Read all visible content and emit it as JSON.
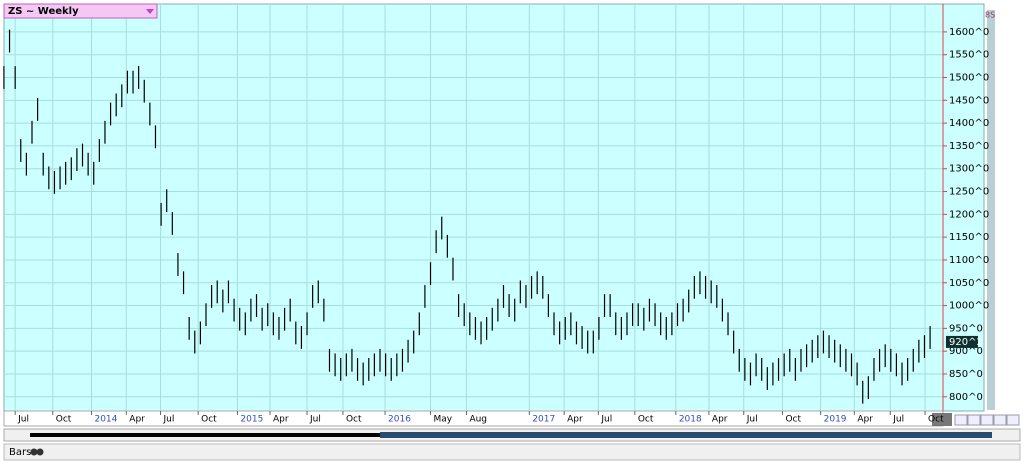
{
  "chart_data": {
    "type": "ohlc",
    "title": "ZS ~ Weekly",
    "color": "#000000",
    "grid": true,
    "high": [
      1525,
      1605,
      1525,
      1365,
      1335,
      1405,
      1455,
      1335,
      1305,
      1295,
      1305,
      1315,
      1325,
      1345,
      1355,
      1335,
      1315,
      1365,
      1405,
      1445,
      1465,
      1485,
      1515,
      1515,
      1525,
      1495,
      1445,
      1395,
      1225,
      1255,
      1205,
      1115,
      1075,
      975,
      945,
      965,
      1005,
      1045,
      1055,
      1035,
      1055,
      1015,
      995,
      985,
      1015,
      1025,
      995,
      1005,
      985,
      975,
      995,
      1015,
      965,
      955,
      985,
      1045,
      1055,
      1015,
      905,
      895,
      885,
      895,
      905,
      885,
      875,
      885,
      895,
      905,
      895,
      885,
      895,
      905,
      925,
      945,
      985,
      1045,
      1095,
      1165,
      1195,
      1155,
      1105,
      1025,
      1005,
      985,
      975,
      965,
      975,
      995,
      1015,
      1045,
      1025,
      1015,
      1055,
      1045,
      1065,
      1075,
      1065,
      1025,
      985,
      965,
      975,
      985,
      965,
      955,
      945,
      945,
      975,
      1025,
      1025,
      985,
      975,
      985,
      1005,
      1005,
      995,
      1015,
      1005,
      985,
      975,
      985,
      1005,
      1015,
      1035,
      1065,
      1075,
      1065,
      1055,
      1045,
      1015,
      985,
      945,
      905,
      885,
      875,
      895,
      885,
      865,
      875,
      885,
      895,
      905,
      885,
      905,
      915,
      925,
      935,
      945,
      935,
      925,
      915,
      905,
      895,
      875,
      835,
      845,
      885,
      905,
      915,
      905,
      895,
      875,
      885,
      905,
      925,
      935,
      955
    ],
    "low": [
      1475,
      1555,
      1475,
      1315,
      1285,
      1355,
      1405,
      1285,
      1255,
      1245,
      1255,
      1265,
      1275,
      1295,
      1305,
      1285,
      1265,
      1315,
      1355,
      1395,
      1415,
      1435,
      1465,
      1465,
      1475,
      1445,
      1395,
      1345,
      1175,
      1205,
      1155,
      1065,
      1025,
      925,
      895,
      915,
      955,
      995,
      1005,
      985,
      1005,
      965,
      945,
      935,
      965,
      975,
      945,
      955,
      935,
      925,
      945,
      965,
      915,
      905,
      935,
      995,
      1005,
      965,
      855,
      845,
      835,
      845,
      855,
      835,
      825,
      835,
      845,
      855,
      845,
      835,
      845,
      855,
      875,
      895,
      935,
      995,
      1045,
      1115,
      1145,
      1105,
      1055,
      975,
      955,
      935,
      925,
      915,
      925,
      945,
      965,
      995,
      975,
      965,
      1005,
      995,
      1015,
      1025,
      1015,
      975,
      935,
      915,
      925,
      935,
      915,
      905,
      895,
      895,
      925,
      975,
      975,
      935,
      925,
      935,
      955,
      955,
      945,
      965,
      955,
      935,
      925,
      935,
      955,
      965,
      985,
      1015,
      1025,
      1015,
      1005,
      995,
      965,
      935,
      895,
      855,
      835,
      825,
      845,
      835,
      815,
      825,
      835,
      845,
      855,
      835,
      855,
      865,
      875,
      885,
      895,
      885,
      875,
      865,
      855,
      845,
      825,
      785,
      795,
      835,
      855,
      865,
      855,
      845,
      825,
      835,
      855,
      875,
      885,
      905
    ],
    "xlim": [
      -0.7,
      167.3
    ],
    "xticks": [
      {
        "value": 2.0,
        "label": "Jul"
      },
      {
        "value": 8.7,
        "label": "Oct"
      },
      {
        "value": 15.6,
        "label": "2014"
      },
      {
        "value": 21.8,
        "label": "Apr"
      },
      {
        "value": 27.9,
        "label": "Jul"
      },
      {
        "value": 34.6,
        "label": "Oct"
      },
      {
        "value": 41.6,
        "label": "2015"
      },
      {
        "value": 47.4,
        "label": "Apr"
      },
      {
        "value": 54.0,
        "label": "Jul"
      },
      {
        "value": 60.4,
        "label": "Oct"
      },
      {
        "value": 67.9,
        "label": "2016"
      },
      {
        "value": 76.0,
        "label": "May"
      },
      {
        "value": 82.4,
        "label": "Aug"
      },
      {
        "value": 93.6,
        "label": "2017"
      },
      {
        "value": 99.8,
        "label": "Apr"
      },
      {
        "value": 105.9,
        "label": "Jul"
      },
      {
        "value": 112.4,
        "label": "Oct"
      },
      {
        "value": 119.7,
        "label": "2018"
      },
      {
        "value": 125.6,
        "label": "Apr"
      },
      {
        "value": 131.8,
        "label": "Jul"
      },
      {
        "value": 138.7,
        "label": "Oct"
      },
      {
        "value": 145.5,
        "label": "2019"
      },
      {
        "value": 151.5,
        "label": "Apr"
      },
      {
        "value": 157.9,
        "label": "Jul"
      },
      {
        "value": 164.1,
        "label": "Oct"
      }
    ],
    "ylim": [
      771,
      1659
    ],
    "yticks": [
      {
        "value": 800,
        "label": "800^0"
      },
      {
        "value": 850,
        "label": "850^0"
      },
      {
        "value": 900,
        "label": "900^0"
      },
      {
        "value": 950,
        "label": "950^0"
      },
      {
        "value": 1000,
        "label": "1000^0"
      },
      {
        "value": 1050,
        "label": "1050^0"
      },
      {
        "value": 1100,
        "label": "1100^0"
      },
      {
        "value": 1150,
        "label": "1150^0"
      },
      {
        "value": 1200,
        "label": "1200^0"
      },
      {
        "value": 1250,
        "label": "1250^0"
      },
      {
        "value": 1300,
        "label": "1300^0"
      },
      {
        "value": 1350,
        "label": "1350^0"
      },
      {
        "value": 1400,
        "label": "1400^0"
      },
      {
        "value": 1450,
        "label": "1450^0"
      },
      {
        "value": 1500,
        "label": "1500^0"
      },
      {
        "value": 1550,
        "label": "1550^0"
      },
      {
        "value": 1600,
        "label": "1600^0"
      }
    ],
    "last_price": 920.25,
    "last_price_label": "920^2"
  },
  "ui": {
    "badge": "8S",
    "status": "Bars"
  }
}
